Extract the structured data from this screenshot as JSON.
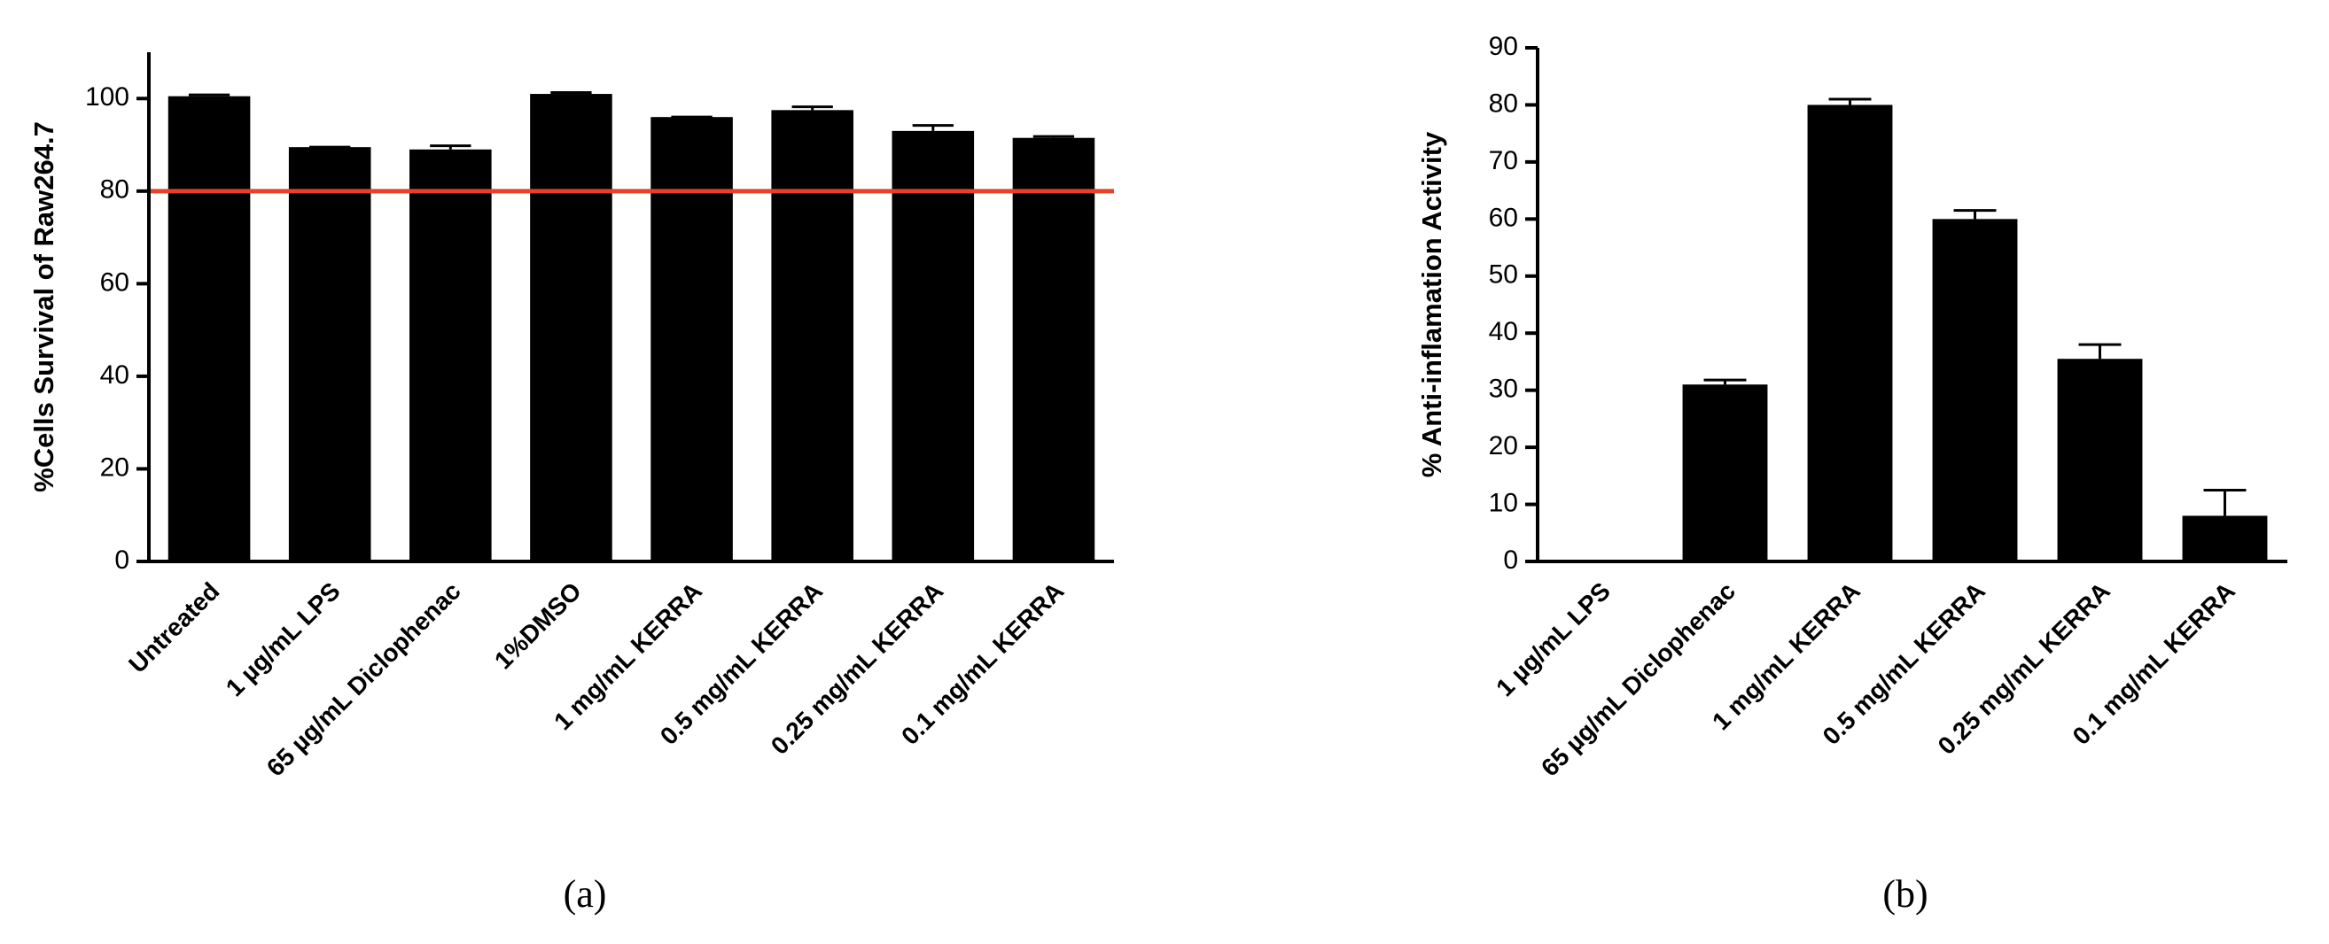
{
  "chart_data": [
    {
      "type": "bar",
      "caption": "(a)",
      "y_label": "%Cells Survival of Raw264.7",
      "categories": [
        "Untreated",
        "1 µg/mL LPS",
        "65 µg/mL Diclophenac",
        "1%DMSO",
        "1 mg/mL KERRA",
        "0.5 mg/mL KERRA",
        "0.25 mg/mL KERRA",
        "0.1 mg/mL KERRA"
      ],
      "values": [
        100.5,
        89.5,
        89,
        101,
        96,
        97.5,
        93,
        91.5
      ],
      "errors": [
        0.3,
        0,
        0.8,
        0.3,
        0,
        0.7,
        1.2,
        0.3
      ],
      "color": "#000000",
      "reference_line": {
        "value": 80,
        "color": "#e8412a"
      },
      "ylim": [
        0,
        110
      ],
      "yticks": [
        0,
        20,
        40,
        60,
        80,
        100
      ]
    },
    {
      "type": "bar",
      "caption": "(b)",
      "y_label": "% Anti-inflamation Activity",
      "categories": [
        "1 µg/mL LPS",
        "65 µg/mL Diclophenac",
        "1 mg/mL KERRA",
        "0.5 mg/mL KERRA",
        "0.25 mg/mL KERRA",
        "0.1 mg/mL KERRA"
      ],
      "values": [
        0,
        31,
        80,
        60,
        35.5,
        8
      ],
      "errors": [
        0,
        0.8,
        1,
        1.5,
        2.5,
        4.5
      ],
      "color": "#000000",
      "ylim": [
        0,
        90
      ],
      "yticks": [
        0,
        10,
        20,
        30,
        40,
        50,
        60,
        70,
        80,
        90
      ]
    }
  ]
}
